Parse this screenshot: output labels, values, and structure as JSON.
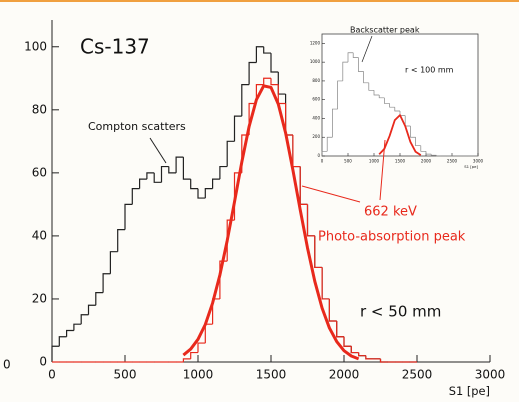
{
  "chart_data": [
    {
      "type": "histogram",
      "xlabel": "S1 [pe]",
      "xlim": [
        0,
        3000
      ],
      "xticks": [
        0,
        500,
        1000,
        1500,
        2000,
        2500,
        3000
      ],
      "ylim": [
        0,
        105
      ],
      "yticks": [
        0,
        20,
        40,
        60,
        80,
        100
      ],
      "bins": [
        0,
        50,
        100,
        150,
        200,
        250,
        300,
        350,
        400,
        450,
        500,
        550,
        600,
        650,
        700,
        750,
        800,
        850,
        900,
        950,
        1000,
        1050,
        1100,
        1150,
        1200,
        1250,
        1300,
        1350,
        1400,
        1450,
        1500,
        1550,
        1600,
        1650,
        1700,
        1750,
        1800,
        1850,
        1900,
        1950,
        2000,
        2050,
        2100,
        2150,
        2200,
        2250,
        2300,
        2350,
        2400,
        2450,
        2500
      ],
      "series": [
        {
          "color": "#222222",
          "values": [
            5,
            8,
            10,
            12,
            15,
            18,
            22,
            28,
            35,
            42,
            50,
            55,
            58,
            60,
            57,
            62,
            60,
            65,
            58,
            55,
            52,
            55,
            58,
            62,
            70,
            78,
            88,
            95,
            100,
            98,
            92,
            85,
            72,
            62,
            50,
            40,
            30,
            20,
            13,
            8,
            5,
            3,
            2,
            1,
            1,
            0,
            0,
            0,
            0,
            0
          ]
        },
        {
          "color": "#e8291c",
          "values": [
            0,
            0,
            0,
            0,
            0,
            0,
            0,
            0,
            0,
            0,
            0,
            0,
            0,
            0,
            0,
            0,
            0,
            0,
            1,
            3,
            6,
            12,
            20,
            32,
            45,
            60,
            72,
            82,
            88,
            90,
            88,
            82,
            72,
            62,
            50,
            40,
            30,
            20,
            13,
            8,
            5,
            3,
            2,
            1,
            1,
            0,
            0,
            0,
            0,
            0
          ]
        }
      ],
      "fit": {
        "color": "#e8291c",
        "x": [
          900,
          950,
          1000,
          1050,
          1100,
          1150,
          1200,
          1250,
          1300,
          1350,
          1400,
          1450,
          1500,
          1550,
          1600,
          1650,
          1700,
          1750,
          1800,
          1850,
          1900,
          1950,
          2000,
          2050,
          2100
        ],
        "values": [
          2.2,
          4.1,
          7.2,
          11.9,
          18.7,
          27.6,
          38.5,
          50.8,
          63.4,
          74.7,
          83.2,
          87.6,
          87.1,
          81.8,
          72.7,
          60.9,
          48.3,
          36.2,
          25.6,
          17.1,
          10.8,
          6.5,
          3.6,
          1.9,
          1.0
        ]
      },
      "annotations": [
        "Cs-137",
        "Compton scatters",
        "662 keV",
        "Photo-absorption peak",
        "r < 50 mm"
      ],
      "edge_label": "0"
    },
    {
      "type": "histogram",
      "xlabel": "S1 [pe]",
      "xlim": [
        0,
        3000
      ],
      "xticks": [
        0,
        500,
        1000,
        1500,
        2000,
        2500,
        3000
      ],
      "ylim": [
        0,
        1300
      ],
      "yticks": [
        0,
        200,
        400,
        600,
        800,
        1000,
        1200
      ],
      "bins": [
        0,
        100,
        200,
        300,
        400,
        500,
        600,
        700,
        800,
        900,
        1000,
        1100,
        1200,
        1300,
        1400,
        1500,
        1600,
        1700,
        1800,
        1900,
        2000,
        2100,
        2200,
        2300,
        2400,
        2500,
        2600,
        2700,
        2800,
        2900,
        3000
      ],
      "series": [
        {
          "color": "#888888",
          "values": [
            50,
            200,
            500,
            800,
            1000,
            1100,
            1050,
            900,
            780,
            700,
            650,
            620,
            560,
            520,
            480,
            430,
            320,
            200,
            110,
            50,
            20,
            8,
            0,
            0,
            0,
            0,
            0,
            0,
            0,
            0
          ]
        }
      ],
      "fit": {
        "color": "#e8291c",
        "x": [
          1100,
          1200,
          1300,
          1400,
          1500,
          1600,
          1700,
          1800,
          1900
        ],
        "values": [
          18,
          77,
          214,
          382,
          436,
          320,
          150,
          45,
          9
        ]
      },
      "annotations": [
        "Backscatter peak",
        "r < 100 mm"
      ]
    }
  ]
}
